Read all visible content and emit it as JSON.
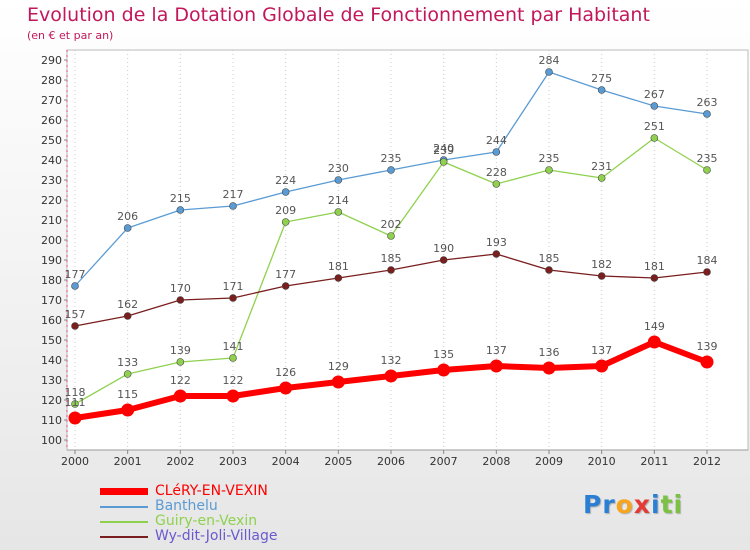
{
  "header": {
    "title": "Evolution de la Dotation Globale de Fonctionnement par Habitant",
    "subtitle": "(en € et par an)"
  },
  "logo": {
    "text": "Proxiti",
    "letters": [
      {
        "ch": "P",
        "color": "#2a7fd4"
      },
      {
        "ch": "r",
        "color": "#2a7fd4"
      },
      {
        "ch": "o",
        "color": "#f7a51c"
      },
      {
        "ch": "x",
        "color": "#e53935"
      },
      {
        "ch": "i",
        "color": "#2a7fd4"
      },
      {
        "ch": "t",
        "color": "#7cc242"
      },
      {
        "ch": "i",
        "color": "#7cc242"
      }
    ]
  },
  "chart_data": {
    "type": "line",
    "title": "Evolution de la Dotation Globale de Fonctionnement par Habitant",
    "subtitle": "(en € et par an)",
    "x": [
      "2000",
      "2001",
      "2002",
      "2003",
      "2004",
      "2005",
      "2006",
      "2007",
      "2008",
      "2009",
      "2010",
      "2011",
      "2012"
    ],
    "ylim": [
      100,
      290
    ],
    "ytick_step": 10,
    "grid": false,
    "legend_position": "bottom-left",
    "series": [
      {
        "name": "CLéRY-EN-VEXIN",
        "color": "#ff0000",
        "label_color": "#555555",
        "emphasis": true,
        "values": [
          111,
          115,
          122,
          122,
          126,
          129,
          132,
          135,
          137,
          136,
          137,
          149,
          139
        ],
        "labels": [
          "111",
          "115",
          "122",
          "122",
          "126",
          "129",
          "132",
          "135",
          "137",
          "136",
          "137",
          "149",
          "139"
        ]
      },
      {
        "name": "Banthelu",
        "color": "#5a9bd4",
        "label_color": "#555555",
        "values": [
          177,
          206,
          215,
          217,
          224,
          230,
          235,
          240,
          244,
          284,
          275,
          267,
          263
        ],
        "labels": [
          "177",
          "206",
          "215",
          "217",
          "224",
          "230",
          "235",
          "240",
          "244",
          "284",
          "275",
          "267",
          "263"
        ]
      },
      {
        "name": "Guiry-en-Vexin",
        "color": "#8fd14f",
        "label_color": "#555555",
        "values": [
          118,
          133,
          139,
          141,
          209,
          214,
          202,
          239,
          228,
          235,
          231,
          251,
          235
        ],
        "labels": [
          "118",
          "133",
          "139",
          "141",
          "209",
          "214",
          "202",
          "239",
          "228",
          "235",
          "231",
          "251",
          "235"
        ]
      },
      {
        "name": "Wy-dit-Joli-Village",
        "color": "#7a1e1e",
        "label_color": "#555555",
        "values": [
          157,
          162,
          170,
          171,
          177,
          181,
          185,
          190,
          193,
          185,
          182,
          181,
          184
        ],
        "labels": [
          "157",
          "162",
          "170",
          "171",
          "177",
          "181",
          "185",
          "190",
          "193",
          "185",
          "182",
          "181",
          "184"
        ]
      }
    ]
  }
}
